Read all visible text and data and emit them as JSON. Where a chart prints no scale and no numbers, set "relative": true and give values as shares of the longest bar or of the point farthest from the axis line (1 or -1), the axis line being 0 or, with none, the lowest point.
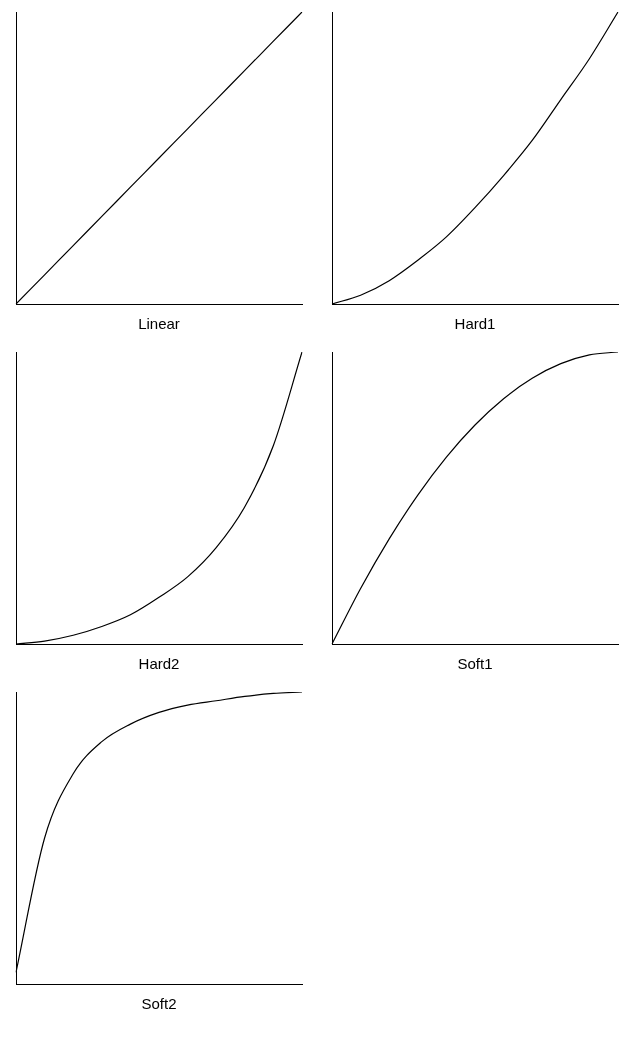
{
  "chart_data": [
    {
      "type": "line",
      "xlabel": "Linear",
      "relative": true,
      "categories": [
        null,
        null,
        null,
        null,
        null,
        null,
        null,
        null,
        null,
        null,
        null
      ],
      "series": [
        {
          "color": "#000000",
          "values": [
            0,
            0.1,
            0.2,
            0.3,
            0.4,
            0.5,
            0.6,
            0.7,
            0.8,
            0.9,
            1
          ]
        }
      ]
    },
    {
      "type": "line",
      "xlabel": "Hard1",
      "relative": true,
      "categories": [
        null,
        null,
        null,
        null,
        null,
        null,
        null,
        null,
        null,
        null,
        null
      ],
      "series": [
        {
          "color": "#000000",
          "values": [
            0,
            0.03,
            0.08,
            0.15,
            0.23,
            0.33,
            0.44,
            0.56,
            0.7,
            0.84,
            1
          ]
        }
      ]
    },
    {
      "type": "line",
      "xlabel": "Hard2",
      "relative": true,
      "categories": [
        null,
        null,
        null,
        null,
        null,
        null,
        null,
        null,
        null,
        null,
        null
      ],
      "series": [
        {
          "color": "#000000",
          "values": [
            0,
            0.01,
            0.03,
            0.06,
            0.1,
            0.16,
            0.23,
            0.33,
            0.47,
            0.68,
            1
          ]
        }
      ]
    },
    {
      "type": "line",
      "xlabel": "Soft1",
      "relative": true,
      "categories": [
        null,
        null,
        null,
        null,
        null,
        null,
        null,
        null,
        null,
        null,
        null
      ],
      "series": [
        {
          "color": "#000000",
          "values": [
            0,
            0.19,
            0.36,
            0.51,
            0.64,
            0.75,
            0.84,
            0.91,
            0.96,
            0.99,
            1
          ]
        }
      ]
    },
    {
      "type": "line",
      "xlabel": "Soft2",
      "relative": true,
      "categories": [
        null,
        null,
        null,
        null,
        null,
        null,
        null,
        null,
        null,
        null,
        null
      ],
      "series": [
        {
          "color": "#000000",
          "values": [
            0.04,
            0.5,
            0.72,
            0.83,
            0.89,
            0.93,
            0.955,
            0.97,
            0.985,
            0.995,
            1
          ]
        }
      ]
    }
  ]
}
